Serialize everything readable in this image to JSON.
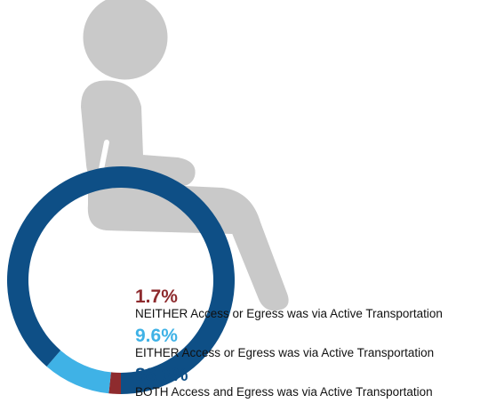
{
  "chart_data": {
    "type": "pie",
    "donut": true,
    "categories": [
      "NEITHER Access or Egress was via Active Transportation",
      "EITHER Access or Egress was via Active Transportation",
      "BOTH Access and Egress was via Active Transportation"
    ],
    "values": [
      1.7,
      9.6,
      88.6
    ],
    "value_labels": [
      "1.7%",
      "9.6%",
      "88.6%"
    ],
    "colors": [
      "#8e2b2e",
      "#3fb2e6",
      "#0e4f86"
    ]
  }
}
